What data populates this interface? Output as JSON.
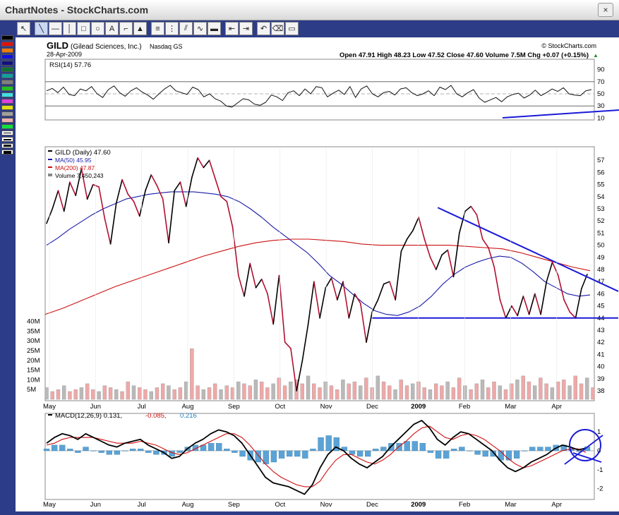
{
  "window": {
    "title": "ChartNotes - StockCharts.com",
    "close_label": "×"
  },
  "toolbar": {
    "tools": [
      {
        "name": "pointer-tool-button",
        "glyph": "↖",
        "selected": false
      },
      {
        "name": "line-tool-button",
        "glyph": "╲",
        "selected": true
      },
      {
        "name": "hline-tool-button",
        "glyph": "—",
        "selected": false
      },
      {
        "name": "vline-tool-button",
        "glyph": "│",
        "selected": false
      },
      {
        "name": "rectangle-tool-button",
        "glyph": "□",
        "selected": false
      },
      {
        "name": "ellipse-tool-button",
        "glyph": "○",
        "selected": false
      },
      {
        "name": "text-tool-button",
        "glyph": "A",
        "selected": false
      },
      {
        "name": "callout-tool-button",
        "glyph": "⌐",
        "selected": false
      },
      {
        "name": "arrow-tool-button",
        "glyph": "▲",
        "selected": false
      },
      {
        "name": "fib-tool-button",
        "glyph": "≡",
        "selected": false
      },
      {
        "name": "fan-tool-button",
        "glyph": "⋮",
        "selected": false
      },
      {
        "name": "channel-tool-button",
        "glyph": "⫽",
        "selected": false
      },
      {
        "name": "cycle-tool-button",
        "glyph": "∿",
        "selected": false
      },
      {
        "name": "line-style-button",
        "glyph": "▬",
        "selected": false
      },
      {
        "name": "move-back-button",
        "glyph": "⇤",
        "selected": false
      },
      {
        "name": "move-forward-button",
        "glyph": "⇥",
        "selected": false
      },
      {
        "name": "undo-button",
        "glyph": "↶",
        "selected": false
      },
      {
        "name": "erase-button",
        "glyph": "⌫",
        "selected": false
      },
      {
        "name": "clear-button",
        "glyph": "▭",
        "selected": false
      }
    ],
    "palette_colors": [
      "#000000",
      "#e01010",
      "#f07a10",
      "#1010e0",
      "#101080",
      "#107030",
      "#10a0a0",
      "#808080",
      "#20c020",
      "#40e0e0",
      "#e040e0",
      "#e0e010",
      "#a0a0a0",
      "#f0b0b0",
      "#10e040"
    ],
    "line_widths": [
      1,
      2,
      3,
      4
    ]
  },
  "chart_data": {
    "type": "line",
    "header": {
      "symbol": "GILD",
      "name": "(Gilead Sciences, Inc.)",
      "exchange": "Nasdaq GS",
      "date": "28-Apr-2009",
      "watermark": "© StockCharts.com",
      "quote": "Open 47.91  High 48.23  Low 47.52  Close 47.60  Volume 7.5M  Chg +0.07 (+0.15%)",
      "chg_arrow": "▲"
    },
    "month_labels": [
      "May",
      "Jun",
      "Jul",
      "Aug",
      "Sep",
      "Oct",
      "Nov",
      "Dec",
      "2009",
      "Feb",
      "Mar",
      "Apr"
    ],
    "rsi": {
      "label": "RSI(14) 57.76",
      "ticks": [
        "90",
        "70",
        "50",
        "30",
        "10"
      ],
      "ylim": [
        0,
        100
      ],
      "levels": [
        70,
        30
      ],
      "values": [
        55,
        59,
        52,
        61,
        49,
        47,
        58,
        55,
        62,
        50,
        44,
        57,
        63,
        52,
        46,
        55,
        60,
        53,
        48,
        41,
        50,
        58,
        64,
        55,
        52,
        49,
        61,
        57,
        45,
        50,
        42,
        38,
        30,
        28,
        35,
        42,
        40,
        33,
        31,
        36,
        48,
        45,
        39,
        52,
        55,
        47,
        58,
        50,
        62,
        60,
        45,
        51,
        56,
        49,
        62,
        44,
        58,
        63,
        50,
        45,
        52,
        54,
        48,
        58,
        60,
        52,
        47,
        50,
        55,
        47,
        61,
        57,
        64,
        50,
        45,
        52,
        57,
        43,
        36,
        40,
        44,
        37,
        45,
        49,
        51,
        43,
        48,
        56,
        47,
        52,
        58,
        54,
        60,
        50,
        48,
        47,
        55,
        57
      ]
    },
    "price": {
      "label_symbol": "GILD (Daily) 47.60",
      "label_ma50": "MA(50) 45.95",
      "label_ma200": "MA(200) 47.87",
      "label_volume": "Volume 7,450,243",
      "ticks": [
        "57",
        "56",
        "55",
        "54",
        "53",
        "52",
        "51",
        "50",
        "49",
        "48",
        "47",
        "46",
        "45",
        "44",
        "43",
        "42",
        "41",
        "40",
        "39",
        "38"
      ],
      "ylim": [
        37.3,
        58
      ],
      "close": [
        51.8,
        53,
        54.5,
        52.8,
        55.2,
        54.1,
        56.3,
        53.8,
        55,
        54.8,
        52.2,
        50.1,
        53.5,
        55.4,
        54.2,
        53.6,
        52.4,
        54.5,
        55.8,
        54.9,
        53.8,
        50.2,
        54.5,
        55.2,
        53.2,
        55.6,
        57.2,
        56.4,
        57.0,
        55.5,
        54.0,
        53.6,
        51.5,
        47.5,
        45.8,
        48.5,
        46.5,
        47.2,
        46.0,
        43.5,
        47.5,
        42.0,
        41.5,
        38.0,
        40.5,
        43.5,
        47.0,
        44.0,
        46.5,
        47.3,
        45.5,
        47.0,
        44.0,
        46.0,
        45.2,
        42.0,
        44.5,
        45.5,
        46.8,
        47.0,
        45.5,
        49.5,
        50.5,
        51.2,
        52.3,
        50.5,
        49.0,
        48.0,
        49.2,
        49.6,
        47.4,
        51.0,
        52.8,
        53.2,
        52.5,
        50.5,
        49.8,
        48.2,
        45.5,
        44.0,
        45.0,
        44.2,
        45.8,
        44.3,
        46.0,
        44.3,
        47.0,
        48.6,
        47.5,
        45.5,
        44.5,
        44.0,
        46.4,
        47.6
      ],
      "ma50": [
        50,
        50.6,
        51.3,
        51.9,
        52.5,
        53.0,
        53.4,
        53.8,
        54.0,
        54.2,
        54.3,
        54.4,
        54.4,
        54.4,
        54.3,
        54.2,
        54.0,
        53.6,
        53.0,
        52.3,
        51.5,
        50.8,
        50.1,
        49.4,
        48.5,
        47.5,
        46.8,
        46.0,
        45.2,
        44.6,
        44.3,
        44.2,
        44.5,
        45.0,
        45.8,
        46.8,
        47.6,
        48.2,
        48.6,
        48.9,
        49.1,
        49.0,
        48.5,
        47.8,
        47.0,
        46.5,
        46.0,
        45.8,
        45.9
      ],
      "ma200": [
        44.3,
        44.8,
        45.4,
        46.0,
        46.6,
        47.1,
        47.6,
        48.1,
        48.6,
        49.1,
        49.5,
        49.9,
        50.2,
        50.4,
        50.5,
        50.5,
        50.4,
        50.3,
        50.1,
        50.0,
        50.0,
        50.0,
        50.0,
        50.0,
        49.9,
        49.8,
        49.7,
        49.4,
        49.0,
        48.6,
        48.2,
        47.9
      ],
      "trendlines": [
        {
          "label": "support line 44",
          "from": [
            0.57,
            44.0
          ],
          "to": [
            1.0,
            44.0
          ]
        },
        {
          "label": "descending resistance",
          "from": [
            0.685,
            53.1
          ],
          "to": [
            1.0,
            46.2
          ]
        }
      ]
    },
    "volume": {
      "ticks": [
        "40M",
        "35M",
        "30M",
        "25M",
        "20M",
        "15M",
        "10M",
        "5M"
      ],
      "ylim": [
        0,
        42
      ],
      "values": [
        6,
        4,
        5,
        7,
        4,
        5,
        6,
        8,
        5,
        4,
        7,
        6,
        5,
        4,
        9,
        7,
        6,
        5,
        4,
        6,
        8,
        7,
        5,
        6,
        9,
        26,
        7,
        5,
        6,
        8,
        5,
        7,
        6,
        9,
        8,
        7,
        10,
        9,
        6,
        8,
        11,
        7,
        9,
        10,
        8,
        12,
        8,
        6,
        9,
        7,
        5,
        10,
        8,
        9,
        7,
        11,
        6,
        12,
        9,
        7,
        5,
        10,
        7,
        8,
        9,
        6,
        5,
        8,
        7,
        9,
        6,
        11,
        7,
        5,
        8,
        10,
        6,
        9,
        7,
        5,
        8,
        10,
        12,
        9,
        7,
        11,
        8,
        6,
        9,
        10,
        7,
        12,
        8,
        11,
        6
      ]
    },
    "macd": {
      "label_main": "MACD(12,26,9) 0.131,",
      "label_signal": "-0.085,",
      "label_hist": "0.216",
      "ticks": [
        "1",
        "0",
        "-1",
        "-2"
      ],
      "ylim": [
        -2.5,
        1.6
      ],
      "macd": [
        0.4,
        0.7,
        0.9,
        0.8,
        0.6,
        0.9,
        0.7,
        0.5,
        0.3,
        0.2,
        0.4,
        0.5,
        0.6,
        0.3,
        0.1,
        -0.1,
        -0.4,
        -0.3,
        0.1,
        0.4,
        0.6,
        0.9,
        1.1,
        1.0,
        0.8,
        0.4,
        -0.2,
        -0.8,
        -1.4,
        -1.7,
        -1.8,
        -1.9,
        -2.1,
        -2.3,
        -1.8,
        -0.9,
        -0.2,
        0.2,
        0.0,
        -0.4,
        -0.7,
        -0.9,
        -0.6,
        -0.3,
        0.2,
        0.6,
        1.0,
        1.4,
        1.6,
        1.2,
        0.6,
        0.3,
        0.7,
        1.0,
        0.9,
        0.6,
        0.3,
        0.0,
        -0.5,
        -0.9,
        -1.1,
        -0.9,
        -0.6,
        -0.4,
        -0.2,
        0.1,
        0.3,
        0.2,
        0.05,
        0.13
      ],
      "signal": [
        0.3,
        0.4,
        0.6,
        0.7,
        0.7,
        0.7,
        0.7,
        0.6,
        0.5,
        0.4,
        0.4,
        0.4,
        0.5,
        0.4,
        0.3,
        0.1,
        -0.1,
        -0.2,
        -0.1,
        0.1,
        0.3,
        0.5,
        0.7,
        0.9,
        0.9,
        0.7,
        0.3,
        -0.2,
        -0.7,
        -1.1,
        -1.4,
        -1.6,
        -1.8,
        -1.9,
        -1.9,
        -1.6,
        -1.0,
        -0.5,
        -0.2,
        -0.2,
        -0.4,
        -0.6,
        -0.7,
        -0.5,
        -0.2,
        0.2,
        0.5,
        0.9,
        1.2,
        1.3,
        1.0,
        0.7,
        0.6,
        0.8,
        0.9,
        0.8,
        0.6,
        0.3,
        0.0,
        -0.4,
        -0.7,
        -0.9,
        -0.8,
        -0.6,
        -0.4,
        -0.2,
        0.0,
        0.1,
        0.1,
        -0.085
      ]
    }
  }
}
